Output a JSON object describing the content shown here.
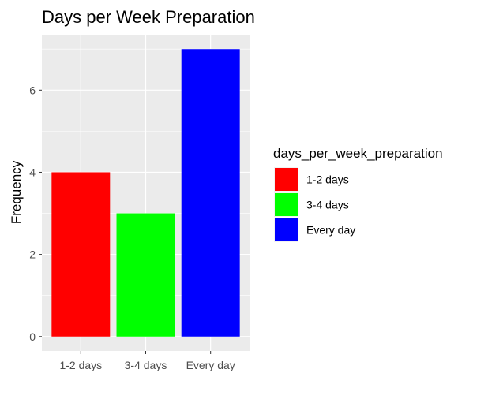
{
  "chart_data": {
    "type": "bar",
    "title": "Days per Week Preparation",
    "xlabel": "",
    "ylabel": "Frequency",
    "categories": [
      "1-2 days",
      "3-4 days",
      "Every day"
    ],
    "values": [
      4,
      3,
      7
    ],
    "colors": [
      "#ff0000",
      "#00ff00",
      "#0000ff"
    ],
    "ylim": [
      0,
      7
    ],
    "yticks": [
      0,
      2,
      4,
      6
    ],
    "grid": true,
    "panel_background": "#ebebeb",
    "grid_color": "#ffffff",
    "legend": {
      "title": "days_per_week_preparation",
      "position": "right",
      "items": [
        "1-2 days",
        "3-4 days",
        "Every day"
      ]
    }
  }
}
